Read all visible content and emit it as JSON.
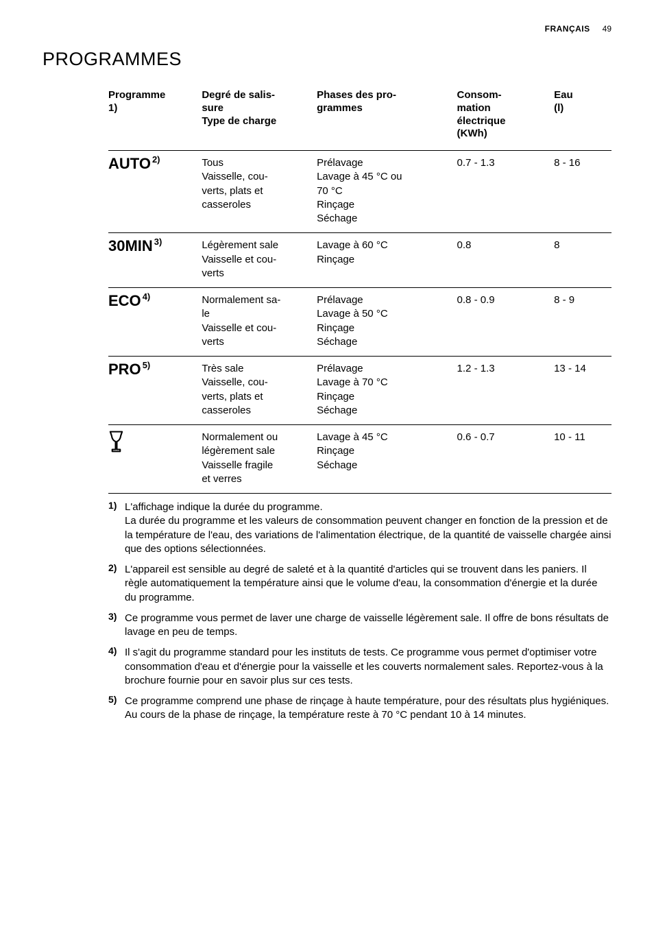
{
  "header": {
    "language": "FRANÇAIS",
    "page": "49"
  },
  "title": "PROGRAMMES",
  "table": {
    "columns": [
      {
        "label_lines": [
          "Programme",
          "1)"
        ]
      },
      {
        "label_lines": [
          "Degré de salis-",
          "sure",
          "Type de charge"
        ]
      },
      {
        "label_lines": [
          "Phases des pro-",
          "grammes"
        ]
      },
      {
        "label_lines": [
          "Consom-",
          "mation",
          "électrique",
          "(KWh)"
        ]
      },
      {
        "label_lines": [
          "Eau",
          "(l)"
        ]
      }
    ],
    "rows": [
      {
        "program": {
          "type": "text",
          "name": "AUTO",
          "note_ref": "2)"
        },
        "soil_lines": [
          "Tous",
          "Vaisselle, cou-",
          "verts, plats et",
          "casseroles"
        ],
        "phase_lines": [
          "Prélavage",
          "Lavage à 45 °C ou",
          "70 °C",
          "Rinçage",
          "Séchage"
        ],
        "energy": "0.7 - 1.3",
        "water": "8 - 16"
      },
      {
        "program": {
          "type": "text",
          "name": "30MIN",
          "note_ref": "3)"
        },
        "soil_lines": [
          "Légèrement sale",
          "Vaisselle et cou-",
          "verts"
        ],
        "phase_lines": [
          "Lavage à 60 °C",
          "Rinçage"
        ],
        "energy": "0.8",
        "water": "8"
      },
      {
        "program": {
          "type": "text",
          "name": "ECO",
          "note_ref": "4)"
        },
        "soil_lines": [
          "Normalement sa-",
          "le",
          "Vaisselle et cou-",
          "verts"
        ],
        "phase_lines": [
          "Prélavage",
          "Lavage à 50 °C",
          "Rinçage",
          "Séchage"
        ],
        "energy": "0.8 - 0.9",
        "water": "8 - 9"
      },
      {
        "program": {
          "type": "text",
          "name": "PRO",
          "note_ref": "5)"
        },
        "soil_lines": [
          "Très sale",
          "Vaisselle, cou-",
          "verts, plats et",
          "casseroles"
        ],
        "phase_lines": [
          "Prélavage",
          "Lavage à 70 °C",
          "Rinçage",
          "Séchage"
        ],
        "energy": "1.2 - 1.3",
        "water": "13 - 14"
      },
      {
        "program": {
          "type": "icon",
          "icon": "glass"
        },
        "soil_lines": [
          "Normalement ou",
          "légèrement sale",
          "Vaisselle fragile",
          "et verres"
        ],
        "phase_lines": [
          "Lavage à 45 °C",
          "Rinçage",
          "Séchage"
        ],
        "energy": "0.6 - 0.7",
        "water": "10 - 11"
      }
    ]
  },
  "footnotes": [
    {
      "num": "1)",
      "paragraphs": [
        "L'affichage indique la durée du programme.",
        "La durée du programme et les valeurs de consommation peuvent changer en fonction de la pression et de la température de l'eau, des variations de l'alimentation électrique, de la quantité de vaisselle chargée ainsi que des options sélectionnées."
      ]
    },
    {
      "num": "2)",
      "paragraphs": [
        "L'appareil est sensible au degré de saleté et à la quantité d'articles qui se trouvent dans les paniers. Il règle automatiquement la température ainsi que le volume d'eau, la consommation d'énergie et la durée du programme."
      ]
    },
    {
      "num": "3)",
      "paragraphs": [
        "Ce programme vous permet de laver une charge de vaisselle légèrement sale. Il offre de bons résultats de lavage en peu de temps."
      ]
    },
    {
      "num": "4)",
      "paragraphs": [
        "Il s'agit du programme standard pour les instituts de tests. Ce programme vous permet d'optimiser votre consommation d'eau et d'énergie pour la vaisselle et les couverts normalement sales. Reportez-vous à la brochure fournie pour en savoir plus sur ces tests."
      ]
    },
    {
      "num": "5)",
      "paragraphs": [
        "Ce programme comprend une phase de rinçage à haute température, pour des résultats plus hygiéniques. Au cours de la phase de rinçage, la température reste à 70 °C pendant 10 à 14 minutes."
      ]
    }
  ]
}
